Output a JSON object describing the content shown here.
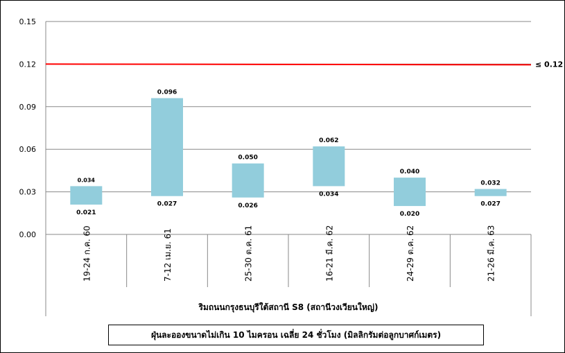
{
  "chart_data": {
    "type": "bar",
    "subtype": "floating-range",
    "categories": [
      "19-24 ก.ค. 60",
      "7-12 เม.ย. 61",
      "25-30 ต.ค. 61",
      "16-21 มี.ค. 62",
      "24-29 ต.ค. 62",
      "21-26 มี.ค. 63"
    ],
    "low": [
      0.021,
      0.027,
      0.026,
      0.034,
      0.02,
      0.027
    ],
    "high": [
      0.034,
      0.096,
      0.05,
      0.062,
      0.04,
      0.032
    ],
    "low_labels": [
      "0.021",
      "0.027",
      "0.026",
      "0.034",
      "0.020",
      "0.027"
    ],
    "high_labels": [
      "0.034",
      "0.096",
      "0.050",
      "0.062",
      "0.040",
      "0.032"
    ],
    "ylim": [
      0,
      0.15
    ],
    "yticks": [
      "0.00",
      "0.03",
      "0.06",
      "0.09",
      "0.12",
      "0.15"
    ],
    "ytick_values": [
      0,
      0.03,
      0.06,
      0.09,
      0.12,
      0.15
    ],
    "standard": {
      "value": 0.12,
      "label": "≤ 0.12",
      "color": "#ff0000"
    },
    "bar_color": "#92cddc",
    "xlabel": "ริมถนนกรุงธนบุรีใต้สถานี S8 (สถานีวงเวียนใหญ่)",
    "legend": "ฝุ่นละอองขนาดไม่เกิน 10 ไมครอน เฉลี่ย 24 ชั่วโมง (มิลลิกรัมต่อลูกบาศก์เมตร)",
    "grid": true
  }
}
